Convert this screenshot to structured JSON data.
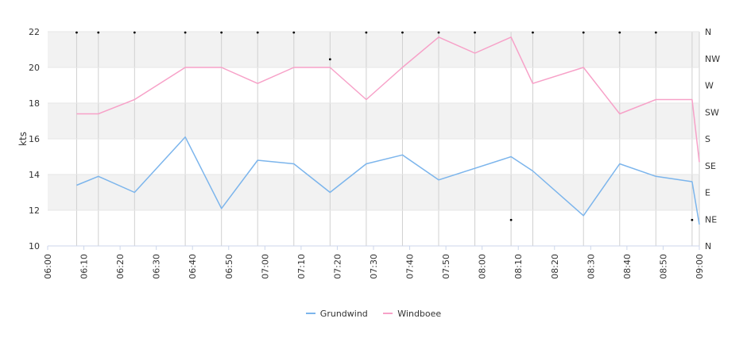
{
  "chart_data": {
    "type": "line",
    "ylabel": "kts",
    "ylim": [
      10,
      22
    ],
    "y_ticks": [
      "10",
      "12",
      "14",
      "16",
      "18",
      "20",
      "22"
    ],
    "x_ticks": [
      "06:00",
      "06:10",
      "06:20",
      "06:30",
      "06:40",
      "06:50",
      "07:00",
      "07:10",
      "07:20",
      "07:30",
      "07:40",
      "07:50",
      "08:00",
      "08:10",
      "08:20",
      "08:30",
      "08:40",
      "08:50",
      "09:00"
    ],
    "x_range": [
      "06:00",
      "09:00"
    ],
    "secondary_axis_ticks": [
      "N",
      "NE",
      "E",
      "SE",
      "S",
      "SW",
      "W",
      "NW",
      "N"
    ],
    "alternating_bands": true,
    "vertical_grid": true,
    "legend_position": "bottom",
    "series": [
      {
        "name": "Grundwind",
        "color": "#7cb5ec",
        "points": [
          [
            "06:08",
            13.4
          ],
          [
            "06:14",
            13.9
          ],
          [
            "06:24",
            13.0
          ],
          [
            "06:38",
            16.1
          ],
          [
            "06:48",
            12.1
          ],
          [
            "06:58",
            14.8
          ],
          [
            "07:08",
            14.6
          ],
          [
            "07:18",
            13.0
          ],
          [
            "07:28",
            14.6
          ],
          [
            "07:38",
            15.1
          ],
          [
            "07:48",
            13.7
          ],
          [
            "08:08",
            15.0
          ],
          [
            "08:14",
            14.2
          ],
          [
            "08:28",
            11.7
          ],
          [
            "08:38",
            14.6
          ],
          [
            "08:48",
            13.9
          ],
          [
            "08:58",
            13.6
          ],
          [
            "09:00",
            11.2
          ]
        ]
      },
      {
        "name": "Windboee",
        "color": "#f7a1c8",
        "points": [
          [
            "06:08",
            17.4
          ],
          [
            "06:14",
            17.4
          ],
          [
            "06:24",
            18.2
          ],
          [
            "06:38",
            20.0
          ],
          [
            "06:48",
            20.0
          ],
          [
            "06:58",
            19.1
          ],
          [
            "07:08",
            20.0
          ],
          [
            "07:18",
            20.0
          ],
          [
            "07:28",
            18.2
          ],
          [
            "07:38",
            20.0
          ],
          [
            "07:48",
            21.7
          ],
          [
            "07:58",
            20.8
          ],
          [
            "08:08",
            21.7
          ],
          [
            "08:14",
            19.1
          ],
          [
            "08:28",
            20.0
          ],
          [
            "08:38",
            17.4
          ],
          [
            "08:48",
            18.2
          ],
          [
            "08:58",
            18.2
          ],
          [
            "09:00",
            14.7
          ]
        ]
      }
    ],
    "direction_markers": [
      {
        "x": "06:08",
        "dir": "N"
      },
      {
        "x": "06:14",
        "dir": "N"
      },
      {
        "x": "06:24",
        "dir": "N"
      },
      {
        "x": "06:38",
        "dir": "N"
      },
      {
        "x": "06:48",
        "dir": "N"
      },
      {
        "x": "06:58",
        "dir": "N"
      },
      {
        "x": "07:08",
        "dir": "N"
      },
      {
        "x": "07:18",
        "dir": "NW"
      },
      {
        "x": "07:28",
        "dir": "N"
      },
      {
        "x": "07:38",
        "dir": "N"
      },
      {
        "x": "07:48",
        "dir": "N"
      },
      {
        "x": "07:58",
        "dir": "N"
      },
      {
        "x": "08:08",
        "dir": "NE"
      },
      {
        "x": "08:14",
        "dir": "N"
      },
      {
        "x": "08:28",
        "dir": "N"
      },
      {
        "x": "08:38",
        "dir": "N"
      },
      {
        "x": "08:48",
        "dir": "N"
      },
      {
        "x": "08:58",
        "dir": "NE"
      }
    ]
  }
}
